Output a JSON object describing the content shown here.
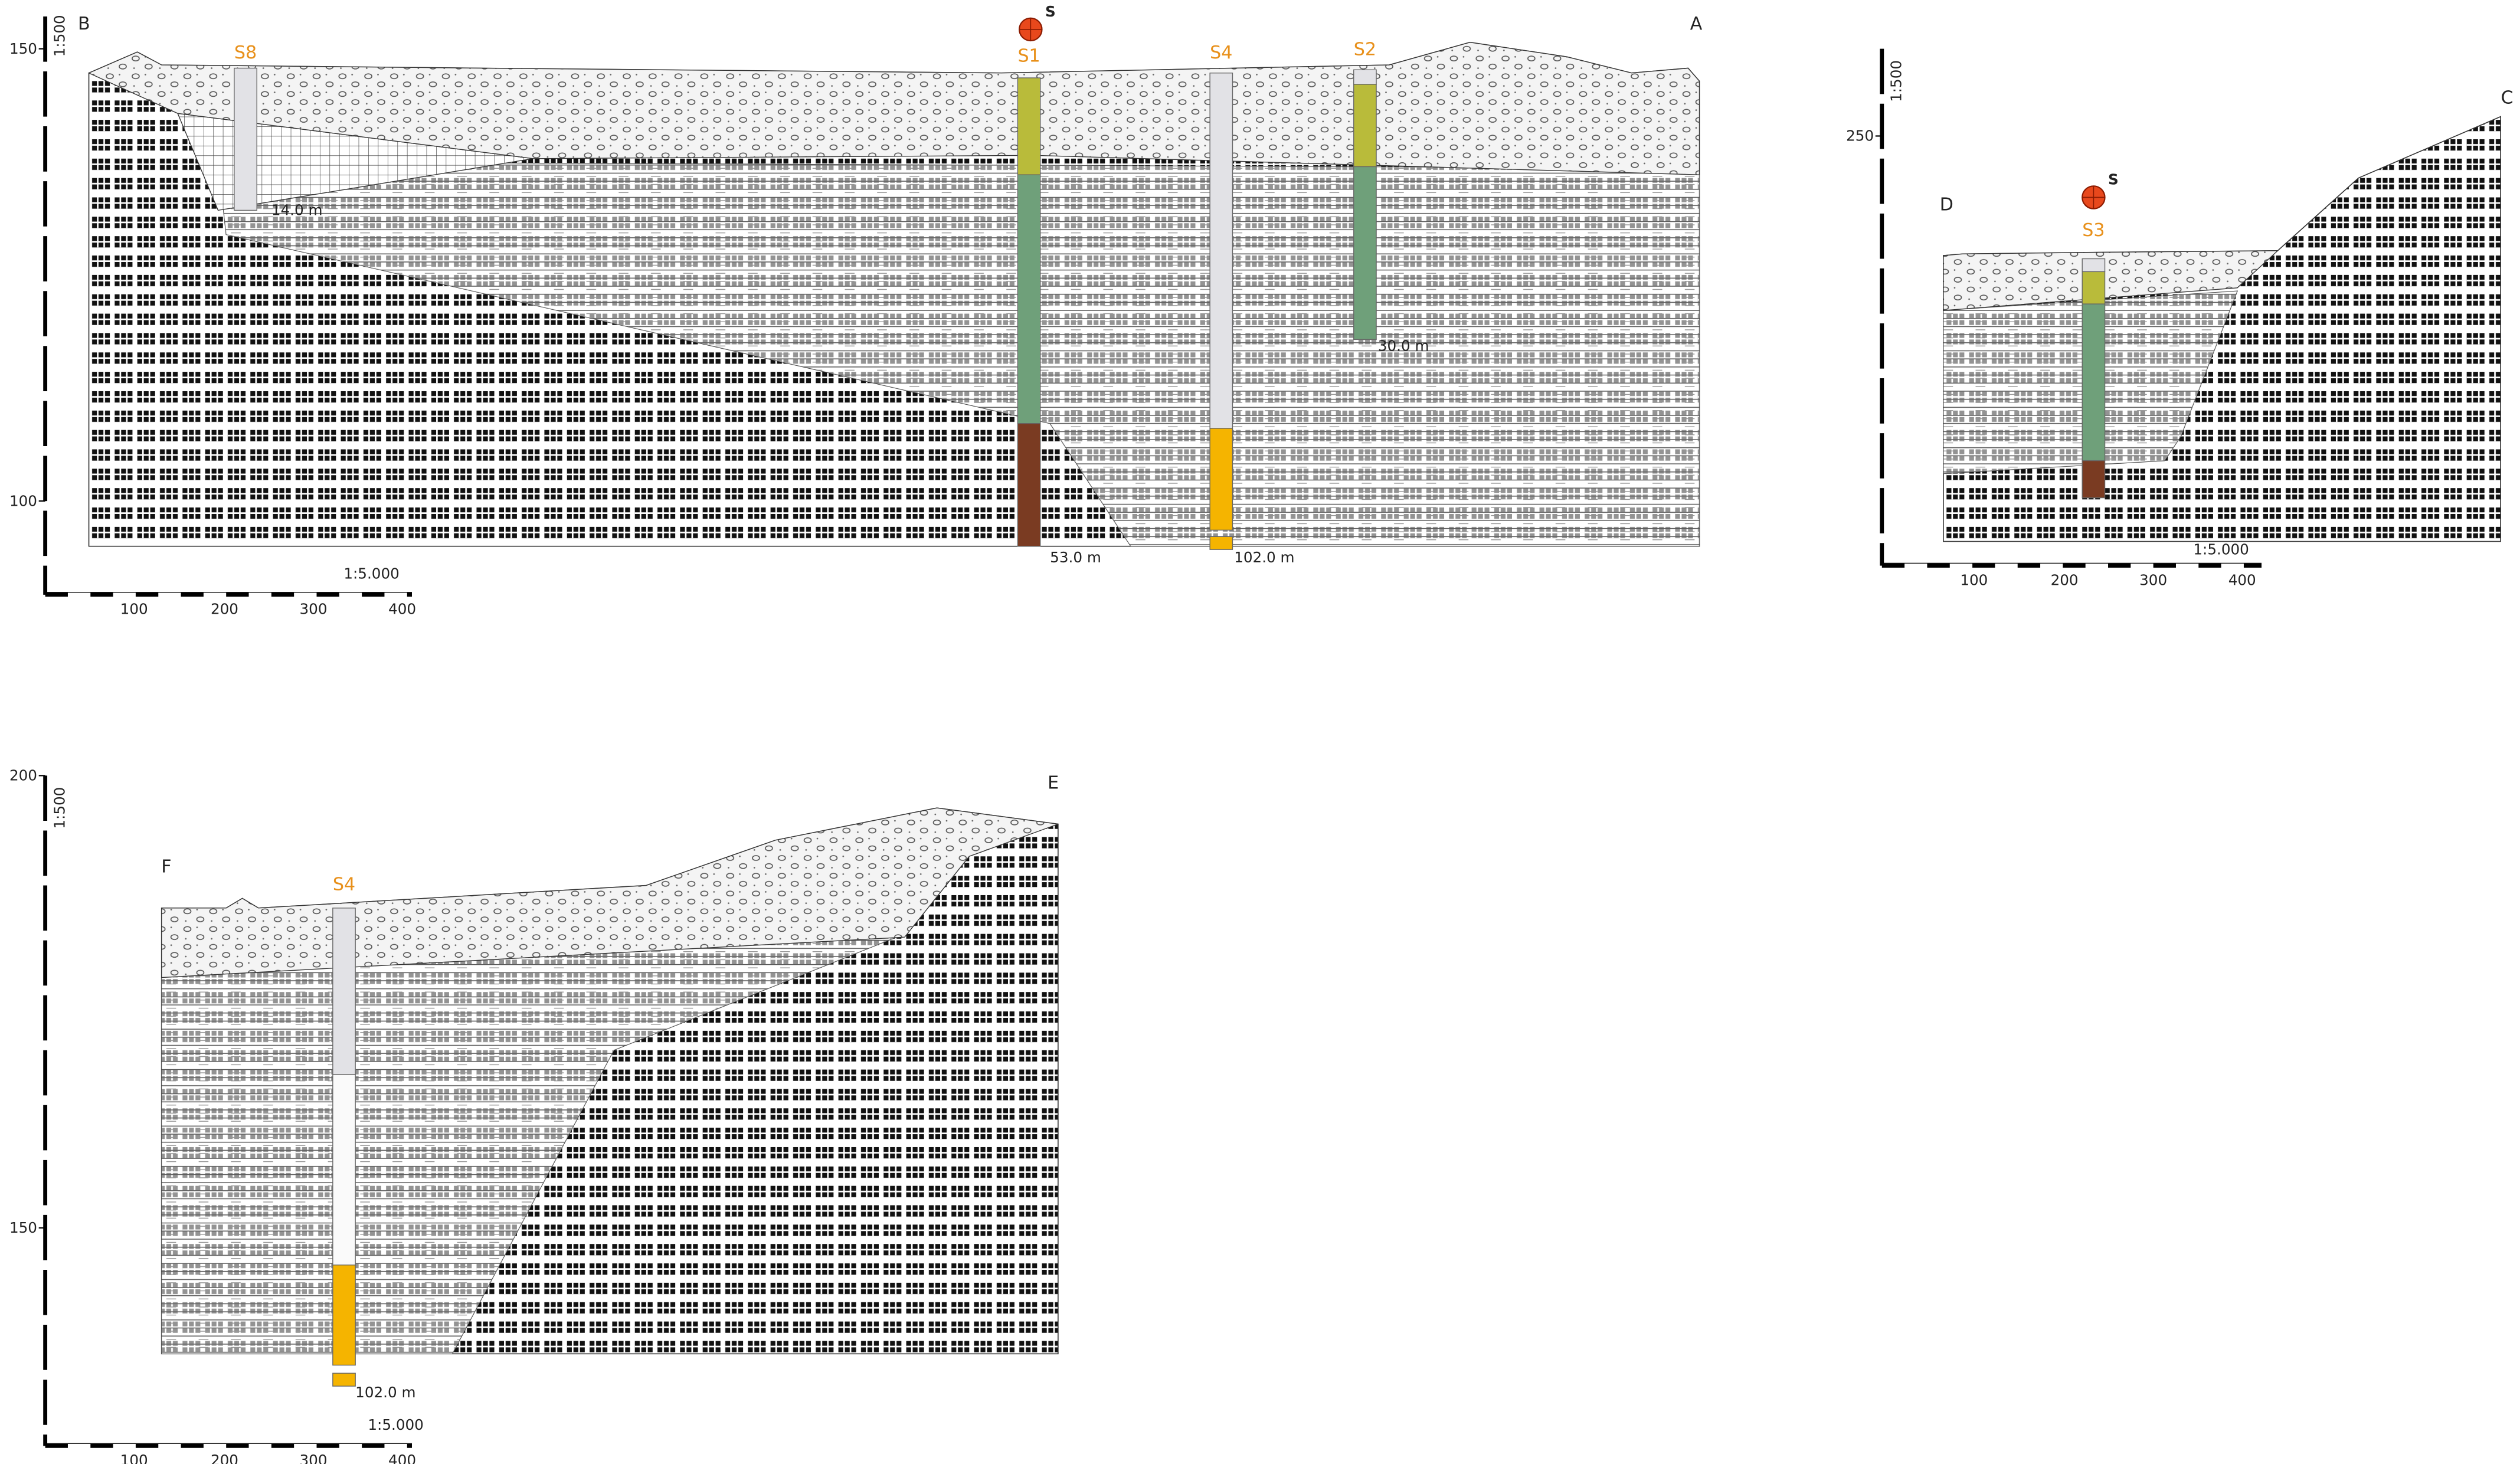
{
  "sections": [
    {
      "ends": [
        "B",
        "A"
      ],
      "vertical_scale": "1:500",
      "horizontal_scale": "1:5.000",
      "elevation_ticks": [
        "150",
        "100"
      ],
      "distance_ticks": [
        "100",
        "200",
        "300",
        "400"
      ],
      "source_marker": "S",
      "boreholes": [
        {
          "name": "S8",
          "depth": "14.0 m"
        },
        {
          "name": "S1",
          "depth": "53.0 m"
        },
        {
          "name": "S4",
          "depth": "102.0 m"
        },
        {
          "name": "S2",
          "depth": "30.0 m"
        }
      ]
    },
    {
      "ends": [
        "D",
        "C"
      ],
      "vertical_scale": "1:500",
      "horizontal_scale": "1:5.000",
      "elevation_ticks": [
        "250"
      ],
      "distance_ticks": [
        "100",
        "200",
        "300",
        "400"
      ],
      "source_marker": "S",
      "boreholes": [
        {
          "name": "S3"
        }
      ]
    },
    {
      "ends": [
        "F",
        "E"
      ],
      "vertical_scale": "1:500",
      "horizontal_scale": "1:5.000",
      "elevation_ticks": [
        "200",
        "150"
      ],
      "distance_ticks": [
        "100",
        "200",
        "300",
        "400"
      ],
      "boreholes": [
        {
          "name": "S4",
          "depth": "102.0 m"
        }
      ]
    }
  ]
}
